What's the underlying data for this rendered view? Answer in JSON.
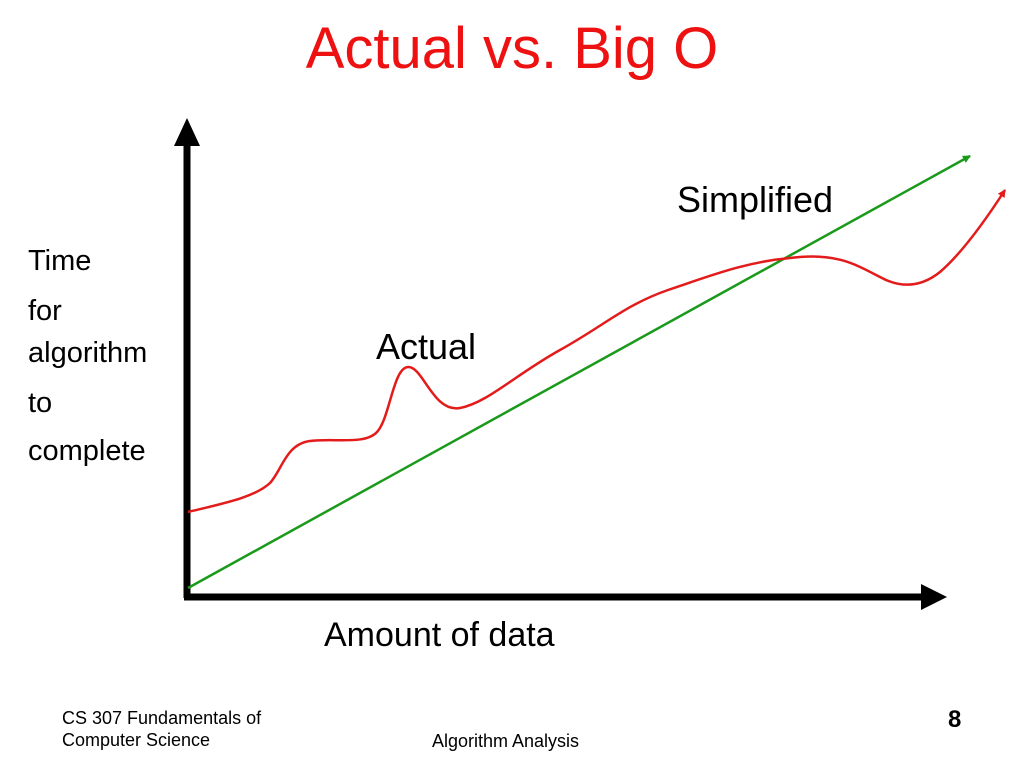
{
  "slide": {
    "title": "Actual vs. Big O",
    "y_axis_label": [
      "Time",
      "for",
      "algorithm",
      "to",
      "complete"
    ],
    "x_axis_label": "Amount of data",
    "curves": {
      "actual": {
        "label": "Actual",
        "color": "#e31b1b"
      },
      "simplified": {
        "label": "Simplified",
        "color": "#1a9a1a"
      }
    },
    "axis_color": "#000000",
    "title_color": "#ee1111"
  },
  "footer": {
    "course_line1": "CS 307 Fundamentals of",
    "course_line2": "Computer Science",
    "topic": "Algorithm Analysis",
    "page_number": "8"
  }
}
